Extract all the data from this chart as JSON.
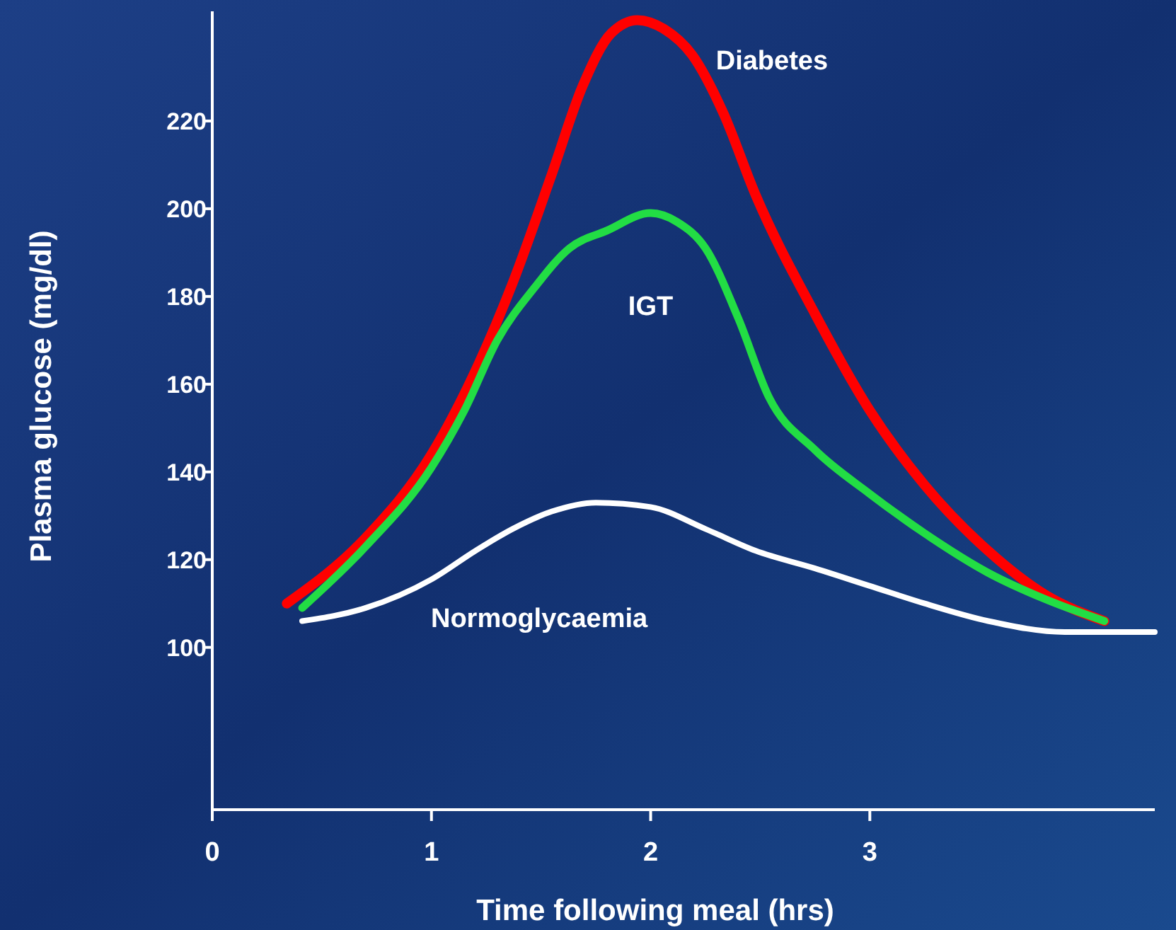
{
  "chart_data": {
    "type": "line",
    "xlabel": "Time following meal (hrs)",
    "ylabel": "Plasma glucose (mg/dl)",
    "xlim": [
      0,
      4.3
    ],
    "xticks": [
      0,
      1,
      2,
      3
    ],
    "ylim": [
      63,
      245
    ],
    "yticks": [
      100,
      120,
      140,
      160,
      180,
      200,
      220
    ],
    "grid": false,
    "marker": "none",
    "line_style": "solid",
    "series": [
      {
        "name": "Diabetes",
        "color": "#ff0000",
        "x": [
          0.34,
          0.7,
          1.0,
          1.2,
          1.37,
          1.55,
          1.69,
          1.82,
          1.94,
          2.06,
          2.19,
          2.33,
          2.48,
          2.75,
          3.0,
          3.25,
          3.54,
          3.8,
          4.07
        ],
        "values": [
          110,
          125,
          144,
          163,
          183,
          208,
          228,
          240,
          243,
          241,
          235,
          222,
          203,
          176,
          154,
          137,
          122,
          112,
          106
        ]
      },
      {
        "name": "IGT",
        "color": "#22dd44",
        "x": [
          0.41,
          0.7,
          1.0,
          1.15,
          1.3,
          1.47,
          1.63,
          1.8,
          2.0,
          2.12,
          2.25,
          2.4,
          2.54,
          2.75,
          3.0,
          3.25,
          3.54,
          3.8,
          4.07
        ],
        "values": [
          109,
          123,
          141,
          154,
          170,
          182,
          191,
          195,
          199,
          197,
          191,
          175,
          157,
          145,
          135,
          126,
          117,
          111,
          106
        ]
      },
      {
        "name": "Normoglycaemia",
        "color": "#ffffff",
        "x": [
          0.41,
          0.7,
          1.0,
          1.2,
          1.37,
          1.55,
          1.75,
          2.0,
          2.25,
          2.48,
          2.75,
          3.0,
          3.25,
          3.54,
          3.89,
          4.3
        ],
        "values": [
          106,
          109,
          115.5,
          122,
          127,
          131,
          133,
          132,
          127,
          122,
          118,
          114,
          110,
          106,
          103.5,
          103.5
        ]
      }
    ]
  }
}
